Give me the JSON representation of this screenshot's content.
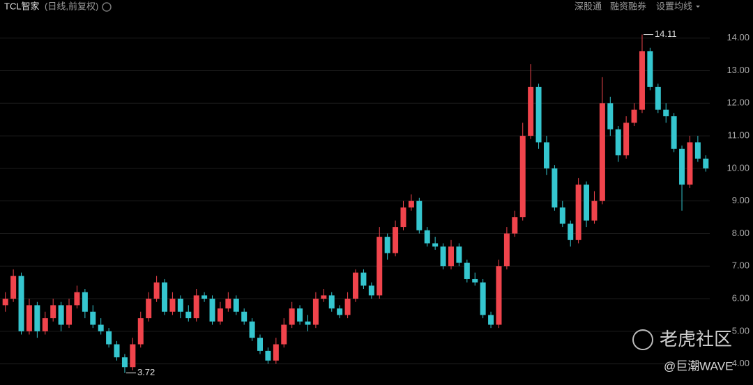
{
  "chart_data": {
    "type": "candlestick",
    "title": "TCL智家",
    "subtitle": "(日线,前复权)",
    "open": [
      5.8,
      6.0,
      6.7,
      5.0,
      5.8,
      5.0,
      5.4,
      5.8,
      5.2,
      5.8,
      6.2,
      5.6,
      5.2,
      5.0,
      4.6,
      4.2,
      3.9,
      4.6,
      5.4,
      6.0,
      6.5,
      5.6,
      6.0,
      5.6,
      5.4,
      6.1,
      6.0,
      5.3,
      5.7,
      6.0,
      5.6,
      5.3,
      4.8,
      4.4,
      4.1,
      4.6,
      5.2,
      5.7,
      5.3,
      5.2,
      6.0,
      6.1,
      5.7,
      5.5,
      6.0,
      6.8,
      6.4,
      6.1,
      7.9,
      7.4,
      8.2,
      8.8,
      9.0,
      8.1,
      7.7,
      7.6,
      7.0,
      7.6,
      7.1,
      6.6,
      6.5,
      5.5,
      5.2,
      7.0,
      8.0,
      8.5,
      11.0,
      12.5,
      10.8,
      10.0,
      8.8,
      8.3,
      7.8,
      9.5,
      8.4,
      9.0,
      12.0,
      11.2,
      10.4,
      11.4,
      11.8,
      13.6,
      12.5,
      11.8,
      11.6,
      10.6,
      9.5,
      10.8,
      10.3
    ],
    "high": [
      6.2,
      6.9,
      6.8,
      6.0,
      5.9,
      5.6,
      6.0,
      5.9,
      6.0,
      6.4,
      6.3,
      5.8,
      5.4,
      5.1,
      4.7,
      4.3,
      4.8,
      5.6,
      6.2,
      6.7,
      6.6,
      6.2,
      6.1,
      5.8,
      6.3,
      6.2,
      6.1,
      5.9,
      6.2,
      6.1,
      5.7,
      5.4,
      4.9,
      4.5,
      4.8,
      5.4,
      5.9,
      5.8,
      5.5,
      6.2,
      6.3,
      6.2,
      5.8,
      6.2,
      6.9,
      6.9,
      6.5,
      8.2,
      8.0,
      8.4,
      9.0,
      9.2,
      9.1,
      8.2,
      7.9,
      7.7,
      7.8,
      7.7,
      7.2,
      6.8,
      6.6,
      5.6,
      7.2,
      8.2,
      8.7,
      11.4,
      13.2,
      12.6,
      11.0,
      10.1,
      9.0,
      8.4,
      9.7,
      9.6,
      9.3,
      12.8,
      12.2,
      11.3,
      11.6,
      12.0,
      14.11,
      13.7,
      12.6,
      12.0,
      11.7,
      10.7,
      11.0,
      11.0,
      10.4
    ],
    "low": [
      5.6,
      5.9,
      4.9,
      4.9,
      4.8,
      4.9,
      5.3,
      5.0,
      5.1,
      5.7,
      5.4,
      5.1,
      4.9,
      4.5,
      4.1,
      3.72,
      3.8,
      4.5,
      5.3,
      5.9,
      5.5,
      5.5,
      5.4,
      5.3,
      5.3,
      5.9,
      5.2,
      5.2,
      5.6,
      5.5,
      5.2,
      4.7,
      4.3,
      4.0,
      4.0,
      4.5,
      5.1,
      5.2,
      5.0,
      5.1,
      5.9,
      5.6,
      5.4,
      5.4,
      5.9,
      6.3,
      6.0,
      6.0,
      7.2,
      7.3,
      8.1,
      8.7,
      8.0,
      7.6,
      7.5,
      6.9,
      6.9,
      7.0,
      6.5,
      6.4,
      5.4,
      5.1,
      5.1,
      6.9,
      7.9,
      8.4,
      10.9,
      10.6,
      9.8,
      8.7,
      8.2,
      7.6,
      7.7,
      8.2,
      8.3,
      8.9,
      11.0,
      10.2,
      10.3,
      11.3,
      11.7,
      12.4,
      11.7,
      11.4,
      10.5,
      8.7,
      9.4,
      10.2,
      9.9
    ],
    "close": [
      6.0,
      6.7,
      5.0,
      5.8,
      5.0,
      5.4,
      5.8,
      5.2,
      5.8,
      6.2,
      5.6,
      5.2,
      5.0,
      4.6,
      4.2,
      3.9,
      4.6,
      5.4,
      6.0,
      6.5,
      5.6,
      6.0,
      5.6,
      5.4,
      6.1,
      6.0,
      5.3,
      5.7,
      6.0,
      5.6,
      5.3,
      4.8,
      4.4,
      4.1,
      4.6,
      5.2,
      5.7,
      5.3,
      5.2,
      6.0,
      6.1,
      5.7,
      5.5,
      6.0,
      6.8,
      6.4,
      6.1,
      7.9,
      7.4,
      8.2,
      8.8,
      9.0,
      8.1,
      7.7,
      7.6,
      7.0,
      7.6,
      7.1,
      6.6,
      6.5,
      5.5,
      5.2,
      7.0,
      8.0,
      8.5,
      11.0,
      12.5,
      10.8,
      10.0,
      8.8,
      8.3,
      7.8,
      9.5,
      8.4,
      9.0,
      12.0,
      11.2,
      10.4,
      11.4,
      11.8,
      13.6,
      12.5,
      11.8,
      11.6,
      10.6,
      9.5,
      10.8,
      10.3,
      10.0
    ],
    "up_color": "#f0444c",
    "down_color": "#35c6cf",
    "ylim": [
      3.5,
      14.25
    ],
    "yticks": [
      {
        "value": 4,
        "label": "4.00"
      },
      {
        "value": 5,
        "label": "5.00"
      },
      {
        "value": 6,
        "label": "6.00"
      },
      {
        "value": 7,
        "label": "7.00"
      },
      {
        "value": 8,
        "label": "8.00"
      },
      {
        "value": 9,
        "label": "9.00"
      },
      {
        "value": 10,
        "label": "10.00"
      },
      {
        "value": 11,
        "label": "11.00"
      },
      {
        "value": 12,
        "label": "12.00"
      },
      {
        "value": 13,
        "label": "13.00"
      },
      {
        "value": 14,
        "label": "14.00"
      }
    ],
    "grid": true,
    "max_annotation": 14.11,
    "min_annotation": 3.72
  },
  "toolbar": [
    "深股通",
    "融资融券",
    "设置均线"
  ],
  "watermark": {
    "brand": "老虎社区",
    "author": "@巨潮WAVE"
  }
}
